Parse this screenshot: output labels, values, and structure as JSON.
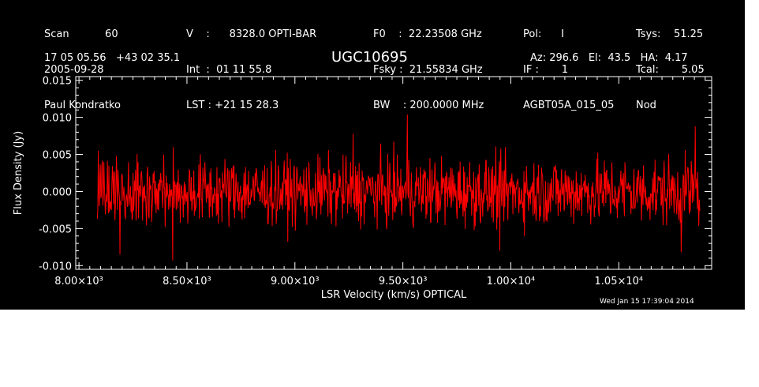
{
  "header": {
    "col1": [
      "Scan           60",
      "2005-09-28",
      "Paul Kondratko"
    ],
    "col2": [
      "V    :      8328.0 OPTI-BAR",
      "Int  :  01 11 55.8",
      "LST : +21 15 28.3"
    ],
    "col3": [
      "F0    :  22.23508 GHz",
      "Fsky :  21.55834 GHz",
      "BW    : 200.0000 MHz"
    ],
    "col4": [
      "Pol:      I",
      "IF :       1",
      "AGBT05A_015_05"
    ],
    "col5": [
      "Tsys:    51.25",
      "Tcal:       5.05",
      "Nod"
    ],
    "coords": "17 05 05.56   +43 02 35.1",
    "source": "UGC10695",
    "azelha": "Az: 296.6   El:  43.5   HA:  4.17"
  },
  "footer": {
    "timestamp": "Wed Jan 15 17:39:04 2014"
  },
  "chart_data": {
    "type": "line",
    "title": "UGC10695",
    "xlabel": "LSR Velocity (km/s) OPTICAL",
    "ylabel": "Flux Density (Jy)",
    "xlim": [
      7985,
      10930
    ],
    "ylim": [
      -0.0105,
      0.0155
    ],
    "x_ticks": [
      8000,
      8500,
      9000,
      9500,
      10000,
      10500
    ],
    "x_tick_labels": [
      "8.00×10³",
      "8.50×10³",
      "9.00×10³",
      "9.50×10³",
      "1.00×10⁴",
      "1.05×10⁴"
    ],
    "y_ticks": [
      -0.01,
      -0.005,
      0.0,
      0.005,
      0.01,
      0.015
    ],
    "y_tick_labels": [
      "-0.010",
      "-0.005",
      "0.000",
      "0.005",
      "0.010",
      "0.015"
    ],
    "grid": false,
    "series": [
      {
        "color": "#ff0000",
        "x_start": 8085,
        "x_end": 10875,
        "n_points": 1200,
        "noise_rms": 0.0025,
        "peaks": [
          {
            "x": 9520,
            "y": 0.0104
          },
          {
            "x": 9270,
            "y": 0.0078
          },
          {
            "x": 10855,
            "y": 0.0088
          },
          {
            "x": 8090,
            "y": 0.0055
          }
        ],
        "troughs": [
          {
            "x": 8435,
            "y": -0.0093
          },
          {
            "x": 8190,
            "y": -0.0085
          },
          {
            "x": 9950,
            "y": -0.008
          },
          {
            "x": 10790,
            "y": -0.0082
          },
          {
            "x": 8085,
            "y": -0.0037
          }
        ]
      }
    ]
  },
  "colors": {
    "background": "#000000",
    "axes": "#ffffff",
    "trace": "#ff0000",
    "page": "#ffffff"
  }
}
